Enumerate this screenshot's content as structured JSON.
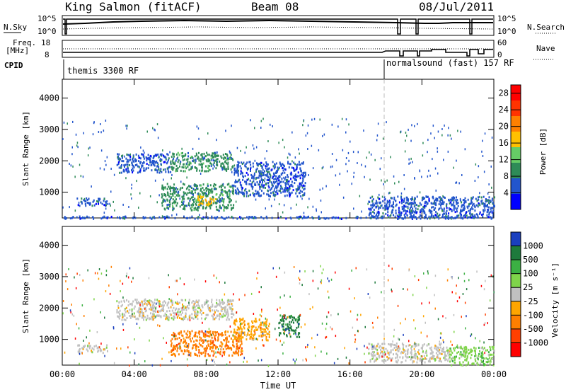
{
  "header": {
    "title": "King Salmon (fitACF)",
    "beam": "Beam 08",
    "date": "08/Jul/2011"
  },
  "status_panels": {
    "nsky_label": "N.Sky",
    "nsearch_label": "N.Search",
    "noise_ticks_left": [
      "10^5",
      "10^0"
    ],
    "noise_ticks_right": [
      "10^5",
      "10^0"
    ],
    "freq_label_line1": "Freq.",
    "freq_label_line2": "[MHz]",
    "freq_ticks": [
      "18",
      "8"
    ],
    "nave_label": "Nave",
    "nave_ticks": [
      "60",
      "0"
    ],
    "cpid_label": "CPID",
    "cpid_programs": [
      {
        "name": "themis 3300 RF",
        "start_hour": 0
      },
      {
        "name": "normalsound (fast) 157 RF",
        "start_hour": 18
      }
    ]
  },
  "chart_data": [
    {
      "type": "heatmap",
      "panel": "power",
      "ylabel": "Slant Range [km]",
      "ylim": [
        180,
        4600
      ],
      "yticks": [
        "1000",
        "2000",
        "3000",
        "4000"
      ],
      "xticks": [
        "00:00",
        "04:00",
        "08:00",
        "12:00",
        "16:00",
        "20:00",
        "00:00"
      ],
      "xlim_hours": [
        0,
        24
      ],
      "colorbar": {
        "title": "Power [dB]",
        "ticks": [
          "4",
          "8",
          "12",
          "16",
          "20",
          "24",
          "28"
        ],
        "range": [
          0,
          30
        ],
        "colors": [
          "#0000ff",
          "#2255cc",
          "#2e8b57",
          "#66cc66",
          "#ffc000",
          "#ff8000",
          "#ff3300",
          "#ff0000"
        ]
      },
      "echo_regions": [
        {
          "t0": 0.8,
          "t1": 2.5,
          "r0": 600,
          "r1": 850,
          "level": 1
        },
        {
          "t0": 3.0,
          "t1": 6.0,
          "r0": 1650,
          "r1": 2250,
          "level": 1
        },
        {
          "t0": 6.0,
          "t1": 9.5,
          "r0": 1700,
          "r1": 2300,
          "level": 2
        },
        {
          "t0": 5.5,
          "t1": 9.5,
          "r0": 450,
          "r1": 1300,
          "level": 2
        },
        {
          "t0": 7.5,
          "t1": 8.5,
          "r0": 600,
          "r1": 900,
          "level": 4
        },
        {
          "t0": 9.5,
          "t1": 13.5,
          "r0": 900,
          "r1": 2000,
          "level": 1
        },
        {
          "t0": 17.0,
          "t1": 24.0,
          "r0": 200,
          "r1": 900,
          "level": 1
        },
        {
          "t0": 0.0,
          "t1": 24.0,
          "r0": 180,
          "r1": 260,
          "level": 1
        }
      ]
    },
    {
      "type": "heatmap",
      "panel": "velocity",
      "ylabel": "Slant Range [km]",
      "xlabel": "Time UT",
      "ylim": [
        180,
        4600
      ],
      "yticks": [
        "1000",
        "2000",
        "3000",
        "4000"
      ],
      "xticks": [
        "00:00",
        "04:00",
        "08:00",
        "12:00",
        "16:00",
        "20:00",
        "00:00"
      ],
      "xlim_hours": [
        0,
        24
      ],
      "colorbar": {
        "title": "Velocity [m s⁻¹]",
        "ticks": [
          "1000",
          "500",
          "100",
          "25",
          "-25",
          "-100",
          "-500",
          "-1000"
        ],
        "colors": [
          "#1a3fbf",
          "#1e7a3c",
          "#3cb043",
          "#7fd44a",
          "#c0c0c0",
          "#ffa500",
          "#ff7f00",
          "#ff4000",
          "#ff0000"
        ]
      },
      "echo_regions": [
        {
          "t0": 0.8,
          "t1": 2.5,
          "r0": 600,
          "r1": 850,
          "color": 4
        },
        {
          "t0": 3.0,
          "t1": 9.5,
          "r0": 1650,
          "r1": 2300,
          "color": 4
        },
        {
          "t0": 6.0,
          "t1": 10.0,
          "r0": 500,
          "r1": 1300,
          "color": 6
        },
        {
          "t0": 9.5,
          "t1": 11.5,
          "r0": 1000,
          "r1": 1700,
          "color": 5
        },
        {
          "t0": 12.0,
          "t1": 13.2,
          "r0": 1100,
          "r1": 1800,
          "color": 1
        },
        {
          "t0": 17.0,
          "t1": 21.5,
          "r0": 300,
          "r1": 900,
          "color": 4
        },
        {
          "t0": 21.5,
          "t1": 24.0,
          "r0": 200,
          "r1": 800,
          "color": 3
        }
      ]
    }
  ]
}
